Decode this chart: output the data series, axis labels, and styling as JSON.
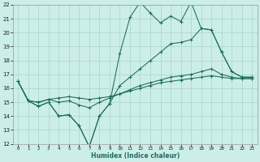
{
  "xlabel": "Humidex (Indice chaleur)",
  "bg_color": "#cceee8",
  "grid_color": "#aad4cc",
  "line_color": "#1e6b5e",
  "xlim": [
    -0.5,
    23.5
  ],
  "ylim": [
    12,
    22
  ],
  "yticks": [
    12,
    13,
    14,
    15,
    16,
    17,
    18,
    19,
    20,
    21,
    22
  ],
  "xticks": [
    0,
    1,
    2,
    3,
    4,
    5,
    6,
    7,
    8,
    9,
    10,
    11,
    12,
    13,
    14,
    15,
    16,
    17,
    18,
    19,
    20,
    21,
    22,
    23
  ],
  "series": [
    [
      16.5,
      15.1,
      14.7,
      15.0,
      14.0,
      14.1,
      13.3,
      11.8,
      14.0,
      14.9,
      18.5,
      21.1,
      22.2,
      21.4,
      20.7,
      21.2,
      20.8,
      22.2,
      20.3,
      20.2,
      18.6,
      17.2,
      16.8,
      16.8
    ],
    [
      16.5,
      15.1,
      14.7,
      15.0,
      14.0,
      14.1,
      13.3,
      11.8,
      14.0,
      14.9,
      16.2,
      16.8,
      17.4,
      18.0,
      18.6,
      19.2,
      19.3,
      19.5,
      20.3,
      20.2,
      18.6,
      17.2,
      16.8,
      16.8
    ],
    [
      16.5,
      15.1,
      15.0,
      15.2,
      15.0,
      15.1,
      14.8,
      14.6,
      15.0,
      15.3,
      15.6,
      15.9,
      16.2,
      16.4,
      16.6,
      16.8,
      16.9,
      17.0,
      17.2,
      17.4,
      17.0,
      16.8,
      16.7,
      16.7
    ],
    [
      16.5,
      15.1,
      15.0,
      15.2,
      15.3,
      15.4,
      15.3,
      15.2,
      15.3,
      15.4,
      15.6,
      15.8,
      16.0,
      16.2,
      16.4,
      16.5,
      16.6,
      16.7,
      16.8,
      16.9,
      16.8,
      16.7,
      16.7,
      16.7
    ]
  ]
}
